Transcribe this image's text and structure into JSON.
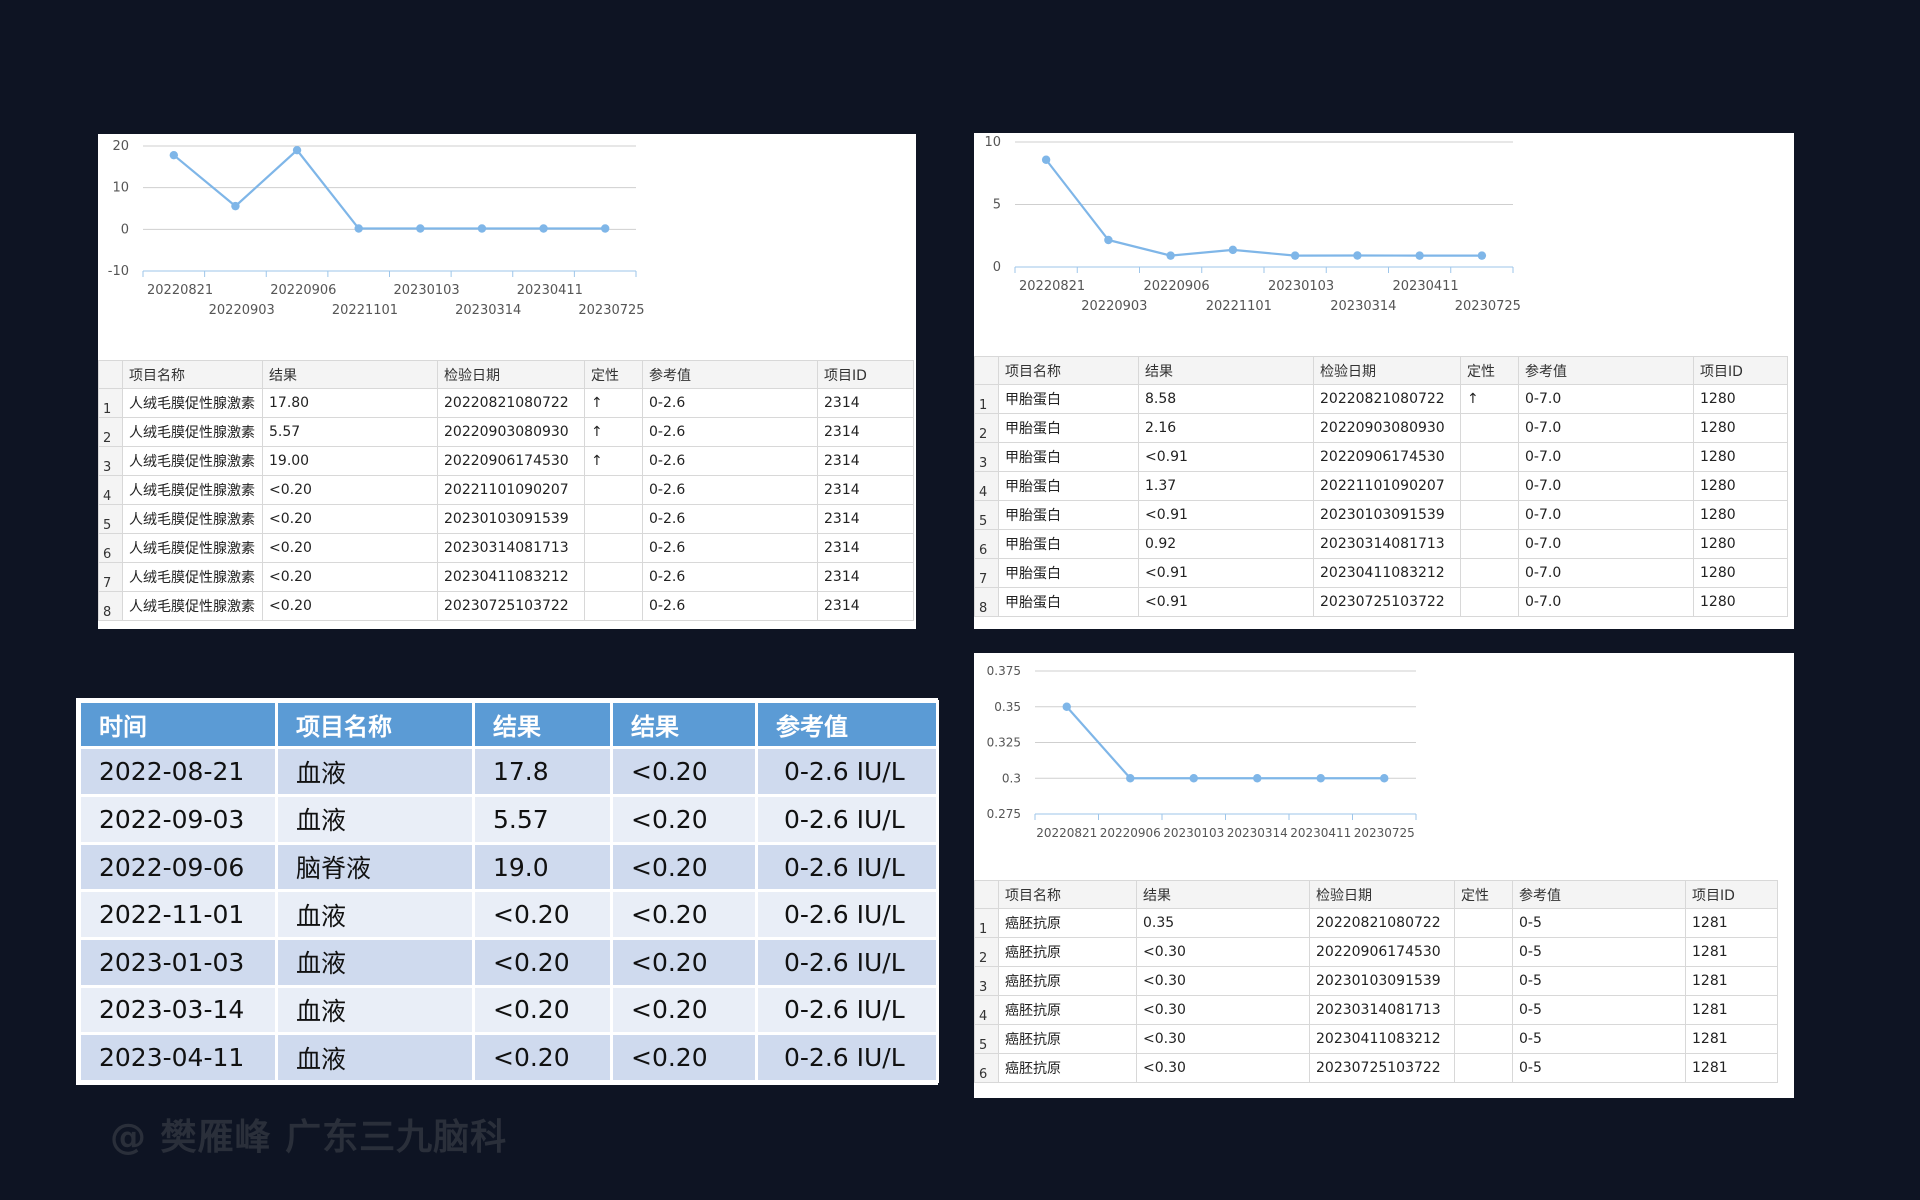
{
  "panels": {
    "hcg": {
      "chart_data": {
        "type": "line",
        "x": [
          "20220821",
          "20220903",
          "20220906",
          "20221101",
          "20230103",
          "20230314",
          "20230411",
          "20230725"
        ],
        "values": [
          17.8,
          5.57,
          19.0,
          0.2,
          0.2,
          0.2,
          0.2,
          0.2
        ],
        "yticks": [
          20,
          10,
          0,
          -10
        ],
        "ylim": [
          -10,
          20
        ],
        "color": "#7fb6e8"
      },
      "table": {
        "headers": [
          "项目名称",
          "结果",
          "检验日期",
          "定性",
          "参考值",
          "项目ID"
        ],
        "rows": [
          [
            "人绒毛膜促性腺激素",
            "17.80",
            "20220821080722",
            "↑",
            "0-2.6",
            "2314"
          ],
          [
            "人绒毛膜促性腺激素",
            "5.57",
            "20220903080930",
            "↑",
            "0-2.6",
            "2314"
          ],
          [
            "人绒毛膜促性腺激素",
            "19.00",
            "20220906174530",
            "↑",
            "0-2.6",
            "2314"
          ],
          [
            "人绒毛膜促性腺激素",
            "<0.20",
            "20221101090207",
            "",
            "0-2.6",
            "2314"
          ],
          [
            "人绒毛膜促性腺激素",
            "<0.20",
            "20230103091539",
            "",
            "0-2.6",
            "2314"
          ],
          [
            "人绒毛膜促性腺激素",
            "<0.20",
            "20230314081713",
            "",
            "0-2.6",
            "2314"
          ],
          [
            "人绒毛膜促性腺激素",
            "<0.20",
            "20230411083212",
            "",
            "0-2.6",
            "2314"
          ],
          [
            "人绒毛膜促性腺激素",
            "<0.20",
            "20230725103722",
            "",
            "0-2.6",
            "2314"
          ]
        ]
      }
    },
    "afp": {
      "chart_data": {
        "type": "line",
        "x": [
          "20220821",
          "20220903",
          "20220906",
          "20221101",
          "20230103",
          "20230314",
          "20230411",
          "20230725"
        ],
        "values": [
          8.58,
          2.16,
          0.91,
          1.37,
          0.91,
          0.92,
          0.91,
          0.91
        ],
        "yticks": [
          10,
          5,
          0
        ],
        "ylim": [
          0,
          10
        ],
        "color": "#7fb6e8"
      },
      "table": {
        "headers": [
          "项目名称",
          "结果",
          "检验日期",
          "定性",
          "参考值",
          "项目ID"
        ],
        "rows": [
          [
            "甲胎蛋白",
            "8.58",
            "20220821080722",
            "↑",
            "0-7.0",
            "1280"
          ],
          [
            "甲胎蛋白",
            "2.16",
            "20220903080930",
            "",
            "0-7.0",
            "1280"
          ],
          [
            "甲胎蛋白",
            "<0.91",
            "20220906174530",
            "",
            "0-7.0",
            "1280"
          ],
          [
            "甲胎蛋白",
            "1.37",
            "20221101090207",
            "",
            "0-7.0",
            "1280"
          ],
          [
            "甲胎蛋白",
            "<0.91",
            "20230103091539",
            "",
            "0-7.0",
            "1280"
          ],
          [
            "甲胎蛋白",
            "0.92",
            "20230314081713",
            "",
            "0-7.0",
            "1280"
          ],
          [
            "甲胎蛋白",
            "<0.91",
            "20230411083212",
            "",
            "0-7.0",
            "1280"
          ],
          [
            "甲胎蛋白",
            "<0.91",
            "20230725103722",
            "",
            "0-7.0",
            "1280"
          ]
        ]
      }
    },
    "cea": {
      "chart_data": {
        "type": "line",
        "x": [
          "20220821",
          "20220906",
          "20230103",
          "20230314",
          "20230411",
          "20230725"
        ],
        "values": [
          0.35,
          0.3,
          0.3,
          0.3,
          0.3,
          0.3
        ],
        "yticks": [
          "0.375",
          "0.35",
          "0.325",
          "0.3",
          "0.275"
        ],
        "ylim": [
          0.275,
          0.375
        ],
        "color": "#7fb6e8"
      },
      "table": {
        "headers": [
          "项目名称",
          "结果",
          "检验日期",
          "定性",
          "参考值",
          "项目ID"
        ],
        "rows": [
          [
            "癌胚抗原",
            "0.35",
            "20220821080722",
            "",
            "0-5",
            "1281"
          ],
          [
            "癌胚抗原",
            "<0.30",
            "20220906174530",
            "",
            "0-5",
            "1281"
          ],
          [
            "癌胚抗原",
            "<0.30",
            "20230103091539",
            "",
            "0-5",
            "1281"
          ],
          [
            "癌胚抗原",
            "<0.30",
            "20230314081713",
            "",
            "0-5",
            "1281"
          ],
          [
            "癌胚抗原",
            "<0.30",
            "20230411083212",
            "",
            "0-5",
            "1281"
          ],
          [
            "癌胚抗原",
            "<0.30",
            "20230725103722",
            "",
            "0-5",
            "1281"
          ]
        ]
      }
    }
  },
  "summary": {
    "headers": [
      "时间",
      "项目名称",
      "结果",
      "结果",
      "参考值"
    ],
    "header_color": "#5b9bd5",
    "rows": [
      [
        "2022-08-21",
        "血液",
        "17.8",
        "<0.20",
        "0-2.6 IU/L"
      ],
      [
        "2022-09-03",
        "血液",
        "5.57",
        "<0.20",
        "0-2.6 IU/L"
      ],
      [
        "2022-09-06",
        "脑脊液",
        "19.0",
        "<0.20",
        "0-2.6 IU/L"
      ],
      [
        "2022-11-01",
        "血液",
        "<0.20",
        "<0.20",
        "0-2.6 IU/L"
      ],
      [
        "2023-01-03",
        "血液",
        "<0.20",
        "<0.20",
        "0-2.6 IU/L"
      ],
      [
        "2023-03-14",
        "血液",
        "<0.20",
        "<0.20",
        "0-2.6 IU/L"
      ],
      [
        "2023-04-11",
        "血液",
        "<0.20",
        "<0.20",
        "0-2.6 IU/L"
      ]
    ]
  },
  "watermark": "@ 樊雁峰 广东三九脑科"
}
